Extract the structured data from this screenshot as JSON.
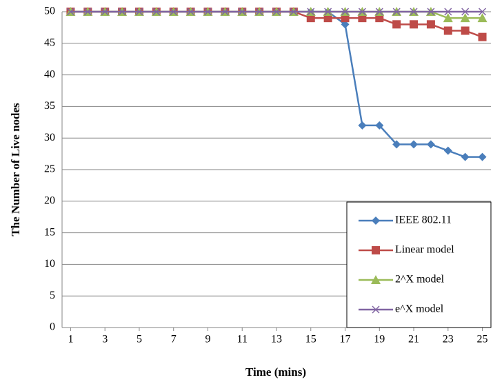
{
  "chart_data": {
    "type": "line",
    "xlabel": "Time (mins)",
    "ylabel": "The Number of Live nodes",
    "x": [
      1,
      2,
      3,
      4,
      5,
      6,
      7,
      8,
      9,
      10,
      11,
      12,
      13,
      14,
      15,
      16,
      17,
      18,
      19,
      20,
      21,
      22,
      23,
      24,
      25
    ],
    "xticks": [
      1,
      3,
      5,
      7,
      9,
      11,
      13,
      15,
      17,
      19,
      21,
      23,
      25
    ],
    "xlim": [
      0.5,
      25.5
    ],
    "ylim": [
      0,
      50
    ],
    "yticks": [
      0,
      5,
      10,
      15,
      20,
      25,
      30,
      35,
      40,
      45,
      50
    ],
    "grid": true,
    "legend": "lower right",
    "series": [
      {
        "name": "IEEE 802.11",
        "color": "#4a7ebb",
        "marker": "diamond",
        "values": [
          50,
          50,
          50,
          50,
          50,
          50,
          50,
          50,
          50,
          50,
          50,
          50,
          50,
          50,
          50,
          50,
          48,
          32,
          32,
          29,
          29,
          29,
          28,
          27,
          27
        ]
      },
      {
        "name": "Linear model",
        "color": "#be4b48",
        "marker": "square",
        "values": [
          50,
          50,
          50,
          50,
          50,
          50,
          50,
          50,
          50,
          50,
          50,
          50,
          50,
          50,
          49,
          49,
          49,
          49,
          49,
          48,
          48,
          48,
          47,
          47,
          46
        ]
      },
      {
        "name": "2^X model",
        "color": "#9bbb59",
        "marker": "triangle",
        "values": [
          50,
          50,
          50,
          50,
          50,
          50,
          50,
          50,
          50,
          50,
          50,
          50,
          50,
          50,
          50,
          50,
          50,
          50,
          50,
          50,
          50,
          50,
          49,
          49,
          49
        ]
      },
      {
        "name": "e^X model",
        "color": "#8064a2",
        "marker": "x",
        "values": [
          50,
          50,
          50,
          50,
          50,
          50,
          50,
          50,
          50,
          50,
          50,
          50,
          50,
          50,
          50,
          50,
          50,
          50,
          50,
          50,
          50,
          50,
          50,
          50,
          50
        ]
      }
    ]
  }
}
